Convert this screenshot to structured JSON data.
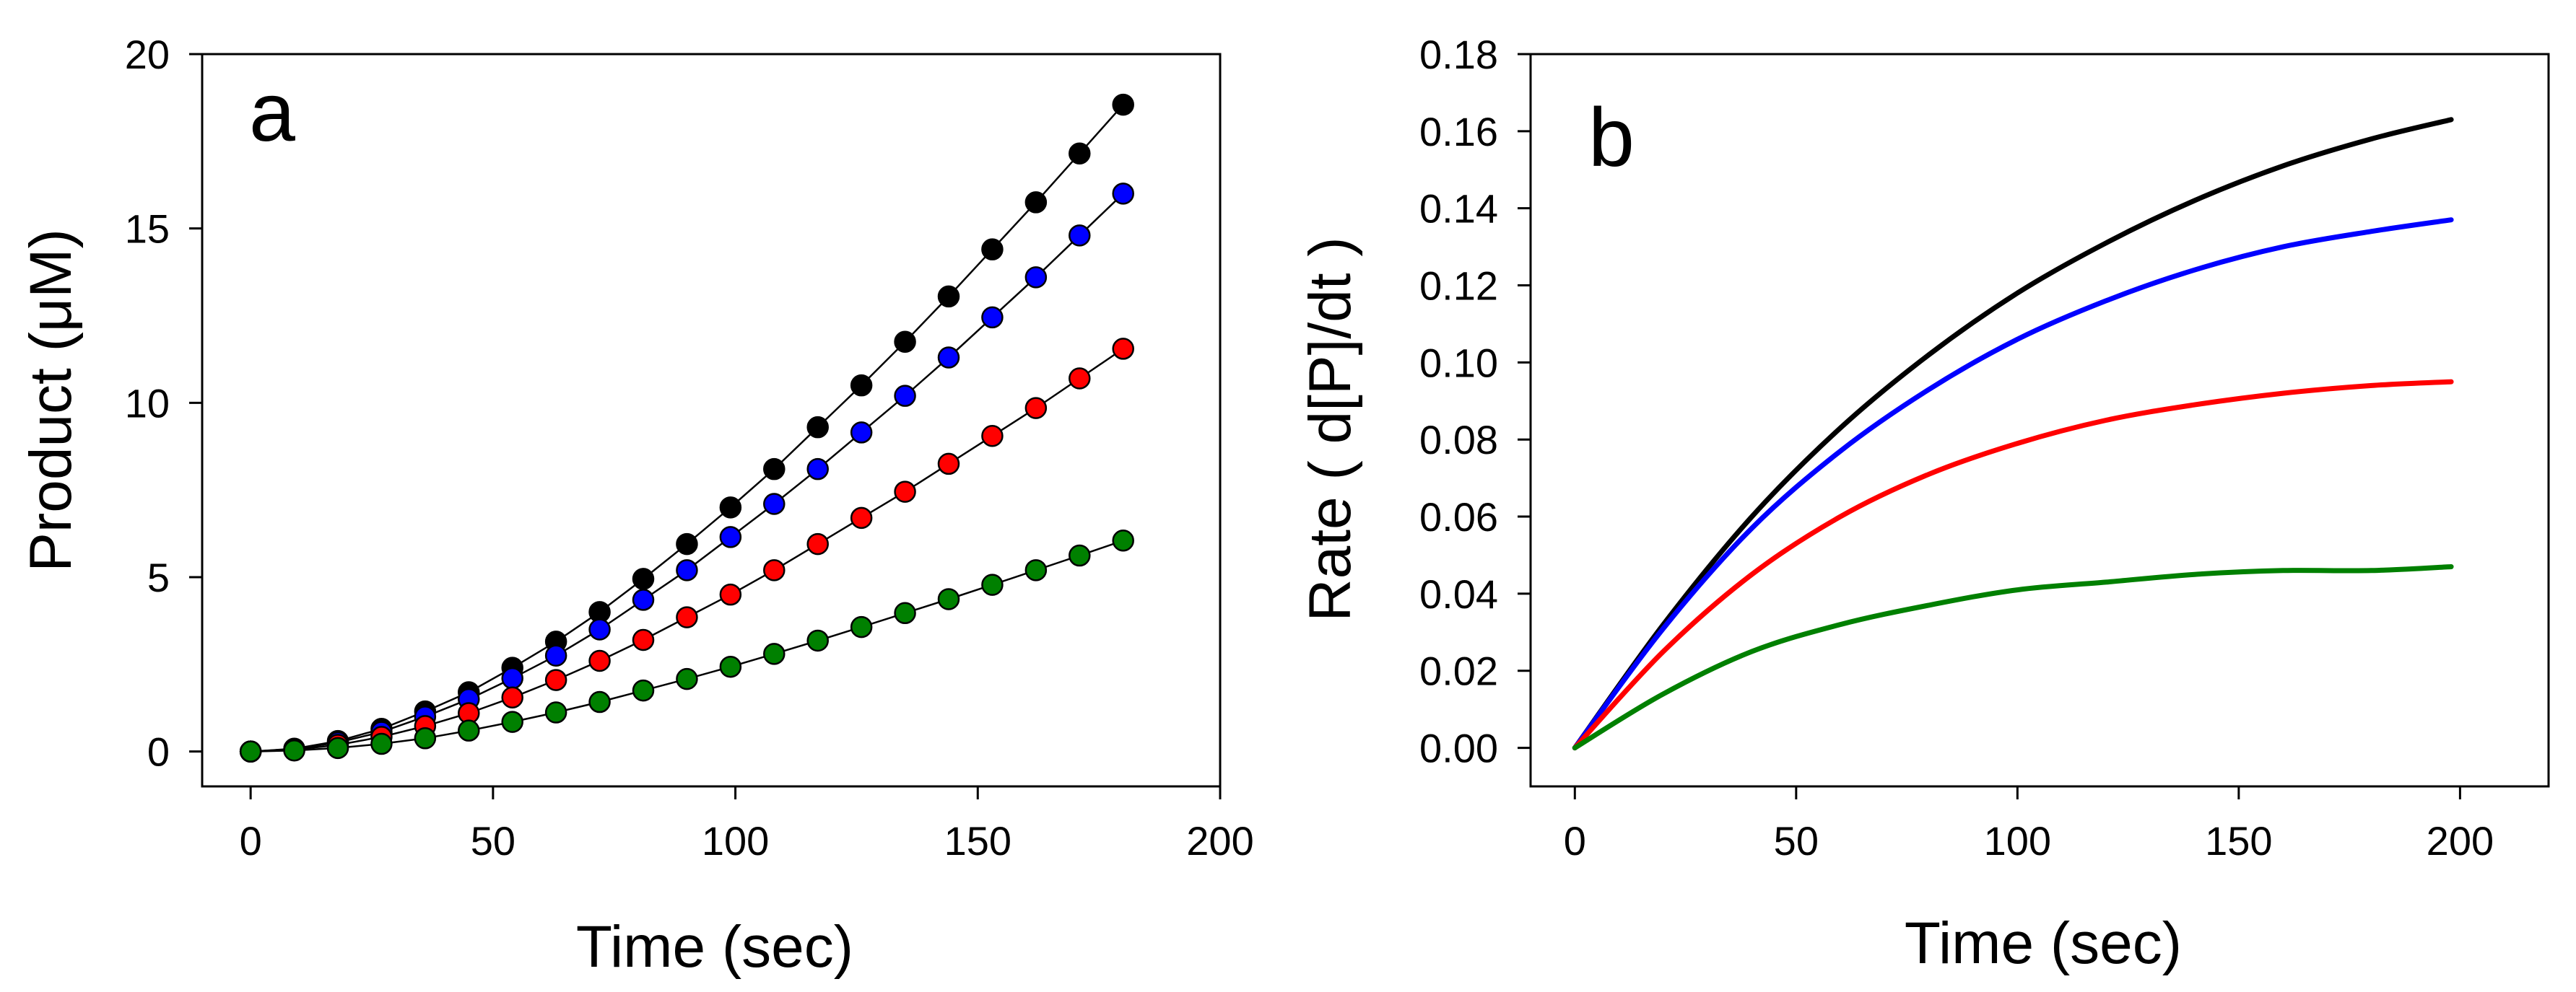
{
  "chart_data": [
    {
      "type": "scatter",
      "panel_label": "a",
      "xlabel": "Time  (sec)",
      "ylabel": "Product  (μM)",
      "xlim": [
        -10,
        200
      ],
      "ylim": [
        -1,
        20
      ],
      "xticks": [
        0,
        50,
        100,
        150,
        200
      ],
      "yticks": [
        0,
        5,
        10,
        15,
        20
      ],
      "grid": false,
      "legend": "none",
      "markers_connected": true,
      "x": [
        0,
        9,
        18,
        27,
        36,
        45,
        54,
        63,
        72,
        81,
        90,
        99,
        108,
        117,
        126,
        135,
        144,
        153,
        162,
        171,
        180
      ],
      "series": [
        {
          "name": "black",
          "color": "#000000",
          "values": [
            0,
            0.08,
            0.3,
            0.65,
            1.15,
            1.7,
            2.4,
            3.15,
            4.0,
            4.95,
            5.95,
            7.0,
            8.1,
            9.3,
            10.5,
            11.75,
            13.05,
            14.4,
            15.75,
            17.15,
            18.55
          ]
        },
        {
          "name": "blue",
          "color": "#0000ff",
          "values": [
            0,
            0.07,
            0.26,
            0.56,
            1.0,
            1.5,
            2.1,
            2.75,
            3.5,
            4.35,
            5.2,
            6.15,
            7.1,
            8.1,
            9.15,
            10.2,
            11.3,
            12.45,
            13.6,
            14.8,
            16.0
          ]
        },
        {
          "name": "red",
          "color": "#ff0000",
          "values": [
            0,
            0.05,
            0.19,
            0.42,
            0.73,
            1.1,
            1.55,
            2.05,
            2.6,
            3.2,
            3.85,
            4.5,
            5.2,
            5.95,
            6.7,
            7.45,
            8.25,
            9.05,
            9.85,
            10.7,
            11.55
          ]
        },
        {
          "name": "green",
          "color": "#008000",
          "values": [
            0,
            0.03,
            0.1,
            0.22,
            0.38,
            0.6,
            0.85,
            1.12,
            1.42,
            1.75,
            2.08,
            2.43,
            2.8,
            3.18,
            3.57,
            3.97,
            4.37,
            4.78,
            5.2,
            5.62,
            6.05
          ]
        }
      ]
    },
    {
      "type": "line",
      "panel_label": "b",
      "xlabel": "Time  (sec)",
      "ylabel": "Rate  ( d[P]/dt )",
      "xlim": [
        -10,
        220
      ],
      "ylim": [
        -0.01,
        0.18
      ],
      "xticks": [
        0,
        50,
        100,
        150,
        200
      ],
      "yticks": [
        0.0,
        0.02,
        0.04,
        0.06,
        0.08,
        0.1,
        0.12,
        0.14,
        0.16,
        0.18
      ],
      "ytick_labels": [
        "0.00",
        "0.02",
        "0.04",
        "0.06",
        "0.08",
        "0.10",
        "0.12",
        "0.14",
        "0.16",
        "0.18"
      ],
      "grid": false,
      "legend": "none",
      "x": [
        0,
        20,
        40,
        60,
        80,
        100,
        120,
        140,
        160,
        180,
        198
      ],
      "series": [
        {
          "name": "black",
          "color": "#000000",
          "values": [
            0.0,
            0.032,
            0.06,
            0.083,
            0.102,
            0.118,
            0.131,
            0.142,
            0.151,
            0.158,
            0.163
          ]
        },
        {
          "name": "blue",
          "color": "#0000ff",
          "values": [
            0.0,
            0.031,
            0.057,
            0.077,
            0.093,
            0.106,
            0.116,
            0.124,
            0.13,
            0.134,
            0.137
          ]
        },
        {
          "name": "red",
          "color": "#ff0000",
          "values": [
            0.0,
            0.025,
            0.045,
            0.06,
            0.071,
            0.079,
            0.085,
            0.089,
            0.092,
            0.094,
            0.095
          ]
        },
        {
          "name": "green",
          "color": "#008000",
          "values": [
            0.0,
            0.014,
            0.025,
            0.032,
            0.037,
            0.041,
            0.043,
            0.045,
            0.046,
            0.046,
            0.047
          ]
        }
      ]
    }
  ]
}
